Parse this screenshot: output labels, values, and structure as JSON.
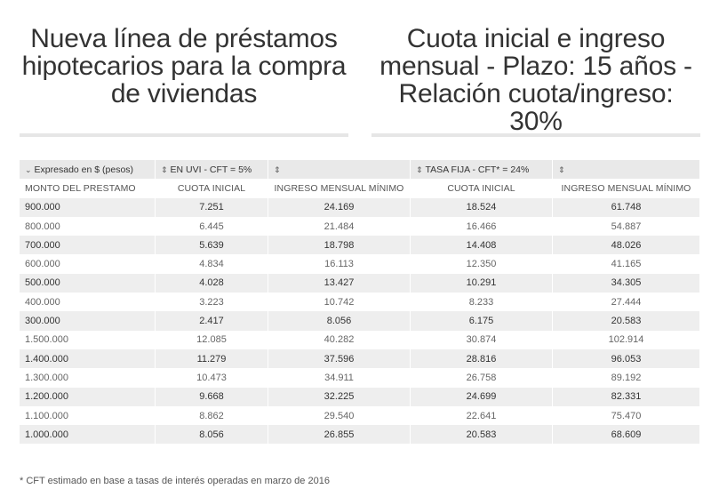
{
  "titles": {
    "left": "Nueva línea de préstamos hipotecarios para la compra de viviendas",
    "right": "Cuota inicial e ingreso mensual - Plazo: 15 años - Relación cuota/ingreso: 30%"
  },
  "table": {
    "group_headers": [
      {
        "icon": "⌄",
        "icon_name": "chevron-down-icon",
        "label": "Expresado en $ (pesos)"
      },
      {
        "icon": "⇕",
        "icon_name": "sort-icon",
        "label": "EN UVI - CFT = 5%"
      },
      {
        "icon": "⇕",
        "icon_name": "sort-icon",
        "label": ""
      },
      {
        "icon": "⇕",
        "icon_name": "sort-icon",
        "label": "TASA FIJA - CFT* = 24%"
      },
      {
        "icon": "⇕",
        "icon_name": "sort-icon",
        "label": ""
      }
    ],
    "columns": [
      "MONTO DEL PRESTAMO",
      "CUOTA INICIAL",
      "INGRESO MENSUAL MÍNIMO",
      "CUOTA INICIAL",
      "INGRESO MENSUAL MÍNIMO"
    ],
    "rows": [
      [
        "900.000",
        "7.251",
        "24.169",
        "18.524",
        "61.748"
      ],
      [
        "800.000",
        "6.445",
        "21.484",
        "16.466",
        "54.887"
      ],
      [
        "700.000",
        "5.639",
        "18.798",
        "14.408",
        "48.026"
      ],
      [
        "600.000",
        "4.834",
        "16.113",
        "12.350",
        "41.165"
      ],
      [
        "500.000",
        "4.028",
        "13.427",
        "10.291",
        "34.305"
      ],
      [
        "400.000",
        "3.223",
        "10.742",
        "8.233",
        "27.444"
      ],
      [
        "300.000",
        "2.417",
        "8.056",
        "6.175",
        "20.583"
      ],
      [
        "1.500.000",
        "12.085",
        "40.282",
        "30.874",
        "102.914"
      ],
      [
        "1.400.000",
        "11.279",
        "37.596",
        "28.816",
        "96.053"
      ],
      [
        "1.300.000",
        "10.473",
        "34.911",
        "26.758",
        "89.192"
      ],
      [
        "1.200.000",
        "9.668",
        "32.225",
        "24.699",
        "82.331"
      ],
      [
        "1.100.000",
        "8.862",
        "29.540",
        "22.641",
        "75.470"
      ],
      [
        "1.000.000",
        "8.056",
        "26.855",
        "20.583",
        "68.609"
      ]
    ]
  },
  "footnote": "* CFT estimado en base a tasas de interés operadas en marzo de 2016",
  "colors": {
    "stripe": "#eeeeee",
    "header_bg": "#e9e9e9",
    "divider": "#e6e6e6",
    "text": "#333333"
  }
}
